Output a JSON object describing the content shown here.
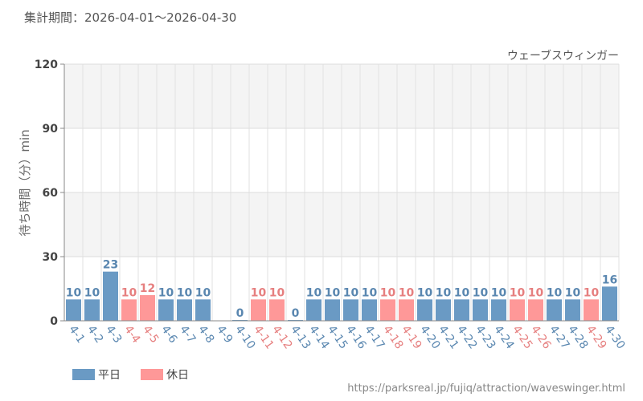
{
  "header": {
    "period": "集計期間：2026-04-01～2026-04-30"
  },
  "footer": {
    "url": "https://parksreal.jp/fujiq/attraction/waveswinger.html"
  },
  "chart_data": {
    "type": "bar",
    "title": "ウェーブスウィンガー",
    "ylabel": "待ち時間（分）min",
    "xlabel": "",
    "ylim": [
      0,
      120
    ],
    "yticks": [
      0,
      30,
      60,
      90,
      120
    ],
    "grid": true,
    "legend_position": "bottom-left",
    "colors": {
      "weekday": "#6a9ac4",
      "holiday": "#fe9898",
      "weekday_label": "#5a87b0",
      "holiday_label": "#e67f7f"
    },
    "series": [
      {
        "key": "weekday",
        "name": "平日"
      },
      {
        "key": "holiday",
        "name": "休日"
      }
    ],
    "categories": [
      "4-1",
      "4-2",
      "4-3",
      "4-4",
      "4-5",
      "4-6",
      "4-7",
      "4-8",
      "4-9",
      "4-10",
      "4-11",
      "4-12",
      "4-13",
      "4-14",
      "4-15",
      "4-16",
      "4-17",
      "4-18",
      "4-19",
      "4-20",
      "4-21",
      "4-22",
      "4-23",
      "4-24",
      "4-25",
      "4-26",
      "4-27",
      "4-28",
      "4-29",
      "4-30"
    ],
    "values": [
      10,
      10,
      23,
      10,
      12,
      10,
      10,
      10,
      null,
      0,
      10,
      10,
      0,
      10,
      10,
      10,
      10,
      10,
      10,
      10,
      10,
      10,
      10,
      10,
      10,
      10,
      10,
      10,
      10,
      16
    ],
    "day_type": [
      "weekday",
      "weekday",
      "weekday",
      "holiday",
      "holiday",
      "weekday",
      "weekday",
      "weekday",
      "weekday",
      "weekday",
      "holiday",
      "holiday",
      "weekday",
      "weekday",
      "weekday",
      "weekday",
      "weekday",
      "holiday",
      "holiday",
      "weekday",
      "weekday",
      "weekday",
      "weekday",
      "weekday",
      "holiday",
      "holiday",
      "weekday",
      "weekday",
      "holiday",
      "weekday"
    ]
  }
}
